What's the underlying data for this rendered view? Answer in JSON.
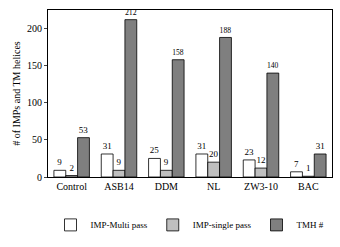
{
  "chart_data": {
    "type": "bar",
    "y_label": "# of IMPs and TM helices",
    "categories": [
      "Control",
      "ASB14",
      "DDM",
      "NL",
      "ZW3-10",
      "BAC"
    ],
    "series": [
      {
        "name": "IMP-Multi pass",
        "color": "#ffffff",
        "values": [
          9,
          31,
          25,
          31,
          23,
          7
        ]
      },
      {
        "name": "IMP-single pass",
        "color": "#bfbfbf",
        "values": [
          2,
          9,
          9,
          20,
          12,
          1
        ]
      },
      {
        "name": "TMH #",
        "color": "#7f7f7f",
        "values": [
          53,
          212,
          158,
          188,
          140,
          31
        ]
      }
    ],
    "ylim": [
      0,
      225
    ],
    "yticks": [
      0,
      50,
      100,
      150,
      200
    ],
    "grid": false,
    "legend": "bottom",
    "data_labels": true
  }
}
